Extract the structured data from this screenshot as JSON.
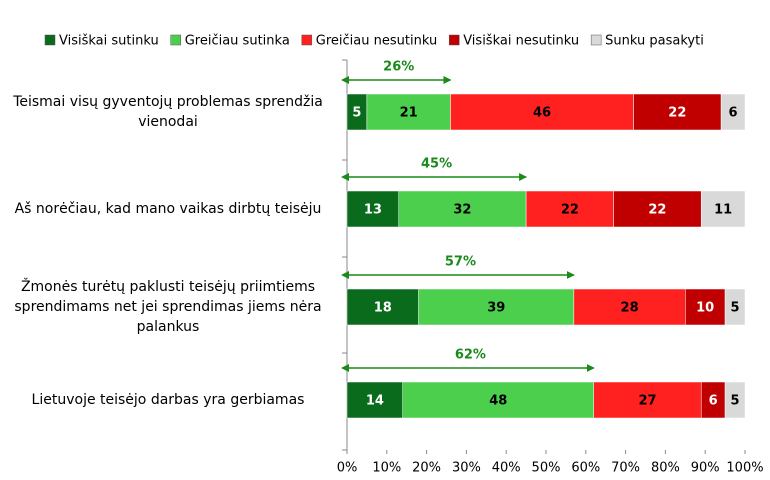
{
  "chart_data": {
    "type": "stacked_bar_horizontal",
    "categories": [
      "Teismai visų gyventojų problemas sprendžia vienodai",
      "Aš norėčiau, kad mano vaikas dirbtų teisėju",
      "Žmonės turėtų paklusti teisėjų priimtiems sprendimams net jei sprendimas jiems nėra palankus",
      "Lietuvoje teisėjo darbas yra gerbiamas"
    ],
    "series": [
      {
        "name": "Visiškai sutinku",
        "color": "#0b6b1c",
        "values": [
          5,
          13,
          18,
          14
        ]
      },
      {
        "name": "Greičiau sutinka",
        "color": "#4ccf4c",
        "values": [
          21,
          32,
          39,
          48
        ]
      },
      {
        "name": "Greičiau nesutinku",
        "color": "#ff2020",
        "values": [
          46,
          22,
          28,
          27
        ]
      },
      {
        "name": "Visiškai nesutinku",
        "color": "#c00000",
        "values": [
          22,
          22,
          10,
          6
        ]
      },
      {
        "name": "Sunku pasakyti",
        "color": "#d9d9d9",
        "values": [
          6,
          11,
          5,
          5
        ]
      }
    ],
    "annotations": [
      {
        "value": 26,
        "label": "26%"
      },
      {
        "value": 45,
        "label": "45%"
      },
      {
        "value": 57,
        "label": "57%"
      },
      {
        "value": 62,
        "label": "62%"
      }
    ],
    "annotation_color": "#1a8a1a",
    "xlim": [
      0,
      100
    ],
    "xticks": [
      {
        "value": 0,
        "label": "0%"
      },
      {
        "value": 10,
        "label": "10%"
      },
      {
        "value": 20,
        "label": "20%"
      },
      {
        "value": 30,
        "label": "30%"
      },
      {
        "value": 40,
        "label": "40%"
      },
      {
        "value": 50,
        "label": "50%"
      },
      {
        "value": 60,
        "label": "60%"
      },
      {
        "value": 70,
        "label": "70%"
      },
      {
        "value": 80,
        "label": "80%"
      },
      {
        "value": 90,
        "label": "90%"
      },
      {
        "value": 100,
        "label": "100%"
      }
    ],
    "legend": "top"
  }
}
